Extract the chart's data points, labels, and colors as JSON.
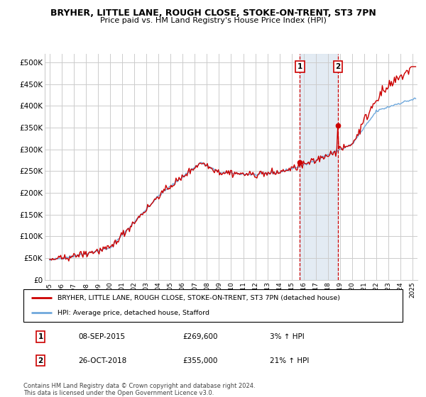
{
  "title": "BRYHER, LITTLE LANE, ROUGH CLOSE, STOKE-ON-TRENT, ST3 7PN",
  "subtitle": "Price paid vs. HM Land Registry's House Price Index (HPI)",
  "ylabel_ticks": [
    "£0",
    "£50K",
    "£100K",
    "£150K",
    "£200K",
    "£250K",
    "£300K",
    "£350K",
    "£400K",
    "£450K",
    "£500K"
  ],
  "ytick_vals": [
    0,
    50000,
    100000,
    150000,
    200000,
    250000,
    300000,
    350000,
    400000,
    450000,
    500000
  ],
  "ylim": [
    0,
    520000
  ],
  "xlim_start": 1994.6,
  "xlim_end": 2025.4,
  "xticks": [
    1995,
    1996,
    1997,
    1998,
    1999,
    2000,
    2001,
    2002,
    2003,
    2004,
    2005,
    2006,
    2007,
    2008,
    2009,
    2010,
    2011,
    2012,
    2013,
    2014,
    2015,
    2016,
    2017,
    2018,
    2019,
    2020,
    2021,
    2022,
    2023,
    2024,
    2025
  ],
  "xtick_labels": [
    "1995",
    "1996",
    "1997",
    "1998",
    "1999",
    "2000",
    "2001",
    "2002",
    "2003",
    "2004",
    "2005",
    "2006",
    "2007",
    "2008",
    "2009",
    "2010",
    "2011",
    "2012",
    "2013",
    "2014",
    "2015",
    "2016",
    "2017",
    "2018",
    "2019",
    "2020",
    "2021",
    "2022",
    "2023",
    "2024",
    "2025"
  ],
  "hpi_color": "#6fa8dc",
  "price_color": "#cc0000",
  "marker1_x": 2015.69,
  "marker1_y": 269600,
  "marker2_x": 2018.82,
  "marker2_y": 355000,
  "marker1_label": "1",
  "marker2_label": "2",
  "legend_line1": "BRYHER, LITTLE LANE, ROUGH CLOSE, STOKE-ON-TRENT, ST3 7PN (detached house)",
  "legend_line2": "HPI: Average price, detached house, Stafford",
  "table_row1": [
    "1",
    "08-SEP-2015",
    "£269,600",
    "3% ↑ HPI"
  ],
  "table_row2": [
    "2",
    "26-OCT-2018",
    "£355,000",
    "21% ↑ HPI"
  ],
  "footnote": "Contains HM Land Registry data © Crown copyright and database right 2024.\nThis data is licensed under the Open Government Licence v3.0.",
  "background_color": "#ffffff",
  "grid_color": "#cccccc",
  "shading_color": "#dce6f1"
}
